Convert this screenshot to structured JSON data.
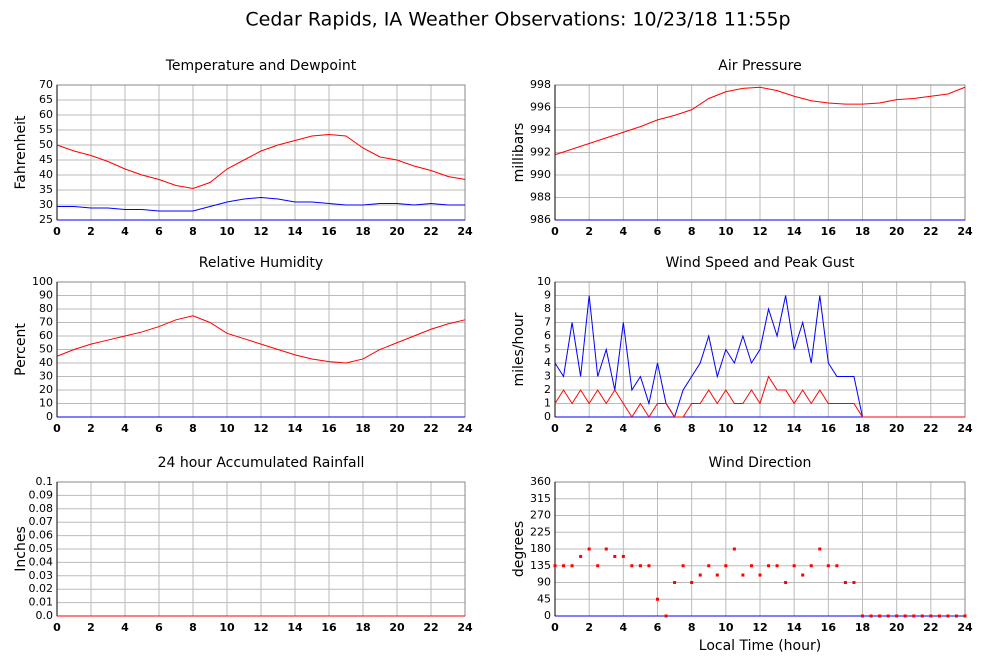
{
  "title": "Cedar Rapids, IA Weather Observations: 10/23/18 11:55p",
  "chart_data": [
    {
      "type": "line",
      "title": "Temperature and Dewpoint",
      "ylabel": "Fahrenheit",
      "x": [
        0,
        1,
        2,
        3,
        4,
        5,
        6,
        7,
        8,
        9,
        10,
        11,
        12,
        13,
        14,
        15,
        16,
        17,
        18,
        19,
        20,
        21,
        22,
        23,
        24
      ],
      "series": [
        {
          "color": "#ff0000",
          "values": [
            50,
            48,
            46.5,
            44.5,
            42,
            40,
            38.5,
            36.5,
            35.5,
            37.5,
            42,
            45,
            48,
            50,
            51.5,
            53,
            53.5,
            53,
            49,
            46,
            45,
            43,
            41.5,
            39.5,
            38.5
          ]
        },
        {
          "color": "#0000ff",
          "values": [
            29.5,
            29.5,
            29,
            29,
            28.5,
            28.5,
            28,
            28,
            28,
            29.5,
            31,
            32,
            32.5,
            32,
            31,
            31,
            30.5,
            30,
            30,
            30.5,
            30.5,
            30,
            30.5,
            30,
            30
          ]
        }
      ],
      "xlim": [
        0,
        24
      ],
      "xticks": [
        0,
        2,
        4,
        6,
        8,
        10,
        12,
        14,
        16,
        18,
        20,
        22,
        24
      ],
      "ylim": [
        25,
        70
      ],
      "yticks": [
        25,
        30,
        35,
        40,
        45,
        50,
        55,
        60,
        65,
        70
      ],
      "grid": true
    },
    {
      "type": "line",
      "title": "Air Pressure",
      "ylabel": "millibars",
      "x": [
        0,
        1,
        2,
        3,
        4,
        5,
        6,
        7,
        8,
        9,
        10,
        11,
        12,
        13,
        14,
        15,
        16,
        17,
        18,
        19,
        20,
        21,
        22,
        23,
        24
      ],
      "series": [
        {
          "color": "#ff0000",
          "values": [
            991.8,
            992.3,
            992.8,
            993.3,
            993.8,
            994.3,
            994.9,
            995.3,
            995.8,
            996.8,
            997.4,
            997.7,
            997.8,
            997.5,
            997,
            996.6,
            996.4,
            996.3,
            996.3,
            996.4,
            996.7,
            996.8,
            997,
            997.2,
            997.8
          ]
        }
      ],
      "xlim": [
        0,
        24
      ],
      "xticks": [
        0,
        2,
        4,
        6,
        8,
        10,
        12,
        14,
        16,
        18,
        20,
        22,
        24
      ],
      "ylim": [
        986,
        998
      ],
      "yticks": [
        986,
        988,
        990,
        992,
        994,
        996,
        998
      ],
      "grid": true
    },
    {
      "type": "line",
      "title": "Relative Humidity",
      "ylabel": "Percent",
      "x": [
        0,
        1,
        2,
        3,
        4,
        5,
        6,
        7,
        8,
        9,
        10,
        11,
        12,
        13,
        14,
        15,
        16,
        17,
        18,
        19,
        20,
        21,
        22,
        23,
        24
      ],
      "series": [
        {
          "color": "#ff0000",
          "values": [
            45,
            50,
            54,
            57,
            60,
            63,
            67,
            72,
            75,
            70,
            62,
            58,
            54,
            50,
            46,
            43,
            41,
            40,
            43,
            50,
            55,
            60,
            65,
            69,
            72
          ]
        }
      ],
      "xlim": [
        0,
        24
      ],
      "xticks": [
        0,
        2,
        4,
        6,
        8,
        10,
        12,
        14,
        16,
        18,
        20,
        22,
        24
      ],
      "ylim": [
        0,
        100
      ],
      "yticks": [
        0,
        10,
        20,
        30,
        40,
        50,
        60,
        70,
        80,
        90,
        100
      ],
      "grid": true
    },
    {
      "type": "line",
      "title": "Wind Speed and Peak Gust",
      "ylabel": "miles/hour",
      "x": [
        0,
        0.5,
        1,
        1.5,
        2,
        2.5,
        3,
        3.5,
        4,
        4.5,
        5,
        5.5,
        6,
        6.5,
        7,
        7.5,
        8,
        8.5,
        9,
        9.5,
        10,
        10.5,
        11,
        11.5,
        12,
        12.5,
        13,
        13.5,
        14,
        14.5,
        15,
        15.5,
        16,
        16.5,
        17,
        17.5,
        18,
        18.5,
        19,
        19.5,
        20,
        20.5,
        21,
        21.5,
        22,
        22.5,
        23,
        23.5,
        24
      ],
      "series": [
        {
          "color": "#0000ff",
          "values": [
            4,
            3,
            7,
            3,
            9,
            3,
            5,
            2,
            7,
            2,
            3,
            1,
            4,
            1,
            0,
            2,
            3,
            4,
            6,
            3,
            5,
            4,
            6,
            4,
            5,
            8,
            6,
            9,
            5,
            7,
            4,
            9,
            4,
            3,
            3,
            3,
            0,
            0,
            0,
            0,
            0,
            0,
            0,
            0,
            0,
            0,
            0,
            0,
            0
          ]
        },
        {
          "color": "#ff0000",
          "values": [
            1,
            2,
            1,
            2,
            1,
            2,
            1,
            2,
            1,
            0,
            1,
            0,
            1,
            1,
            0,
            0,
            1,
            1,
            2,
            1,
            2,
            1,
            1,
            2,
            1,
            3,
            2,
            2,
            1,
            2,
            1,
            2,
            1,
            1,
            1,
            1,
            0,
            0,
            0,
            0,
            0,
            0,
            0,
            0,
            0,
            0,
            0,
            0,
            0
          ]
        }
      ],
      "xlim": [
        0,
        24
      ],
      "xticks": [
        0,
        2,
        4,
        6,
        8,
        10,
        12,
        14,
        16,
        18,
        20,
        22,
        24
      ],
      "ylim": [
        0,
        10
      ],
      "yticks": [
        0,
        1,
        2,
        3,
        4,
        5,
        6,
        7,
        8,
        9,
        10
      ],
      "grid": true
    },
    {
      "type": "line",
      "title": "24 hour Accumulated Rainfall",
      "ylabel": "Inches",
      "x": [
        0,
        24
      ],
      "series": [
        {
          "color": "#ff0000",
          "values": [
            0,
            0
          ]
        }
      ],
      "xlim": [
        0,
        24
      ],
      "xticks": [
        0,
        2,
        4,
        6,
        8,
        10,
        12,
        14,
        16,
        18,
        20,
        22,
        24
      ],
      "ylim": [
        0,
        0.1
      ],
      "yticks": [
        {
          "value": 0,
          "label": "0.0"
        },
        0.01,
        0.02,
        0.03,
        0.04,
        0.05,
        0.06,
        0.07,
        0.08,
        0.09,
        0.1
      ],
      "grid": true
    },
    {
      "type": "scatter",
      "title": "Wind Direction",
      "ylabel": "degrees",
      "xlabel": "Local Time (hour)",
      "x": [
        0,
        0.5,
        1,
        1.5,
        2,
        2.5,
        3,
        3.5,
        4,
        4.5,
        5,
        5.5,
        6,
        6.5,
        7,
        7.5,
        8,
        8.5,
        9,
        9.5,
        10,
        10.5,
        11,
        11.5,
        12,
        12.5,
        13,
        13.5,
        14,
        14.5,
        15,
        15.5,
        16,
        16.5,
        17,
        17.5,
        18,
        18.5,
        19,
        19.5,
        20,
        20.5,
        21,
        21.5,
        22,
        22.5,
        23,
        23.5,
        24
      ],
      "series": [
        {
          "color": "#ff0000",
          "values": [
            135,
            135,
            135,
            160,
            180,
            135,
            180,
            160,
            160,
            135,
            135,
            135,
            45,
            0,
            90,
            135,
            90,
            110,
            135,
            110,
            135,
            180,
            110,
            135,
            110,
            135,
            135,
            90,
            135,
            110,
            135,
            180,
            135,
            135,
            90,
            90,
            0,
            0,
            0,
            0,
            0,
            0,
            0,
            0,
            0,
            0,
            0,
            0,
            0
          ]
        }
      ],
      "xlim": [
        0,
        24
      ],
      "xticks": [
        0,
        2,
        4,
        6,
        8,
        10,
        12,
        14,
        16,
        18,
        20,
        22,
        24
      ],
      "ylim": [
        0,
        360
      ],
      "yticks": [
        0,
        45,
        90,
        135,
        180,
        225,
        270,
        315,
        360
      ],
      "grid": true
    }
  ]
}
